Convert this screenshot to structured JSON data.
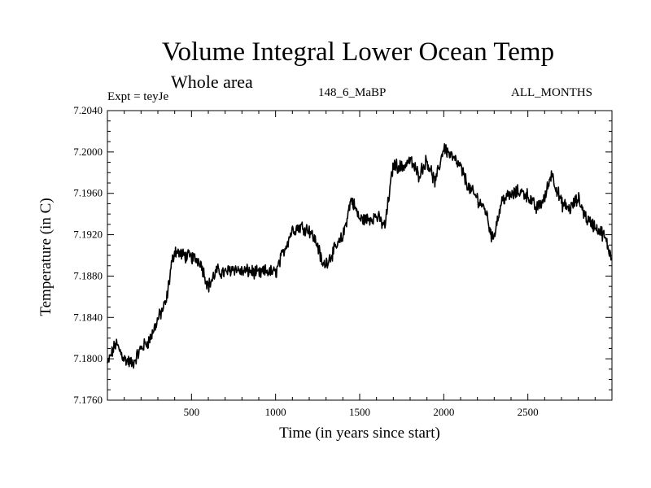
{
  "chart_data": {
    "type": "line",
    "title": "Volume Integral Lower Ocean Temp",
    "subtitle": "Whole area",
    "annotations": {
      "experiment": "Expt = teyJe",
      "run": "148_6_MaBP",
      "months": "ALL_MONTHS"
    },
    "xlabel": "Time (in years since start)",
    "ylabel": "Temperature (in C)",
    "xlim": [
      0,
      3000
    ],
    "ylim": [
      7.176,
      7.204
    ],
    "xticks": [
      500,
      1000,
      1500,
      2000,
      2500
    ],
    "xtick_labels": [
      "500",
      "1000",
      "1500",
      "2000",
      "2500"
    ],
    "yticks": [
      7.176,
      7.18,
      7.184,
      7.188,
      7.192,
      7.196,
      7.2,
      7.204
    ],
    "ytick_labels": [
      "7.1760",
      "7.1800",
      "7.1840",
      "7.1880",
      "7.1920",
      "7.1960",
      "7.2000",
      "7.2040"
    ],
    "series": [
      {
        "name": "Volume Integral Lower Ocean Temp",
        "color": "#000000",
        "x": [
          0,
          50,
          100,
          150,
          200,
          250,
          300,
          350,
          380,
          400,
          450,
          500,
          550,
          600,
          650,
          700,
          750,
          800,
          850,
          900,
          950,
          1000,
          1050,
          1100,
          1150,
          1200,
          1250,
          1280,
          1300,
          1350,
          1400,
          1450,
          1500,
          1550,
          1600,
          1650,
          1700,
          1750,
          1800,
          1850,
          1900,
          1950,
          2000,
          2050,
          2100,
          2150,
          2200,
          2250,
          2290,
          2350,
          2400,
          2450,
          2500,
          2550,
          2600,
          2640,
          2700,
          2750,
          2800,
          2850,
          2900,
          2950,
          3000
        ],
        "values": [
          7.1795,
          7.1815,
          7.18,
          7.1795,
          7.181,
          7.1818,
          7.1838,
          7.1855,
          7.189,
          7.1905,
          7.19,
          7.1898,
          7.1895,
          7.187,
          7.1885,
          7.1883,
          7.1888,
          7.1884,
          7.1885,
          7.1882,
          7.1885,
          7.1883,
          7.1905,
          7.1925,
          7.1928,
          7.1925,
          7.191,
          7.189,
          7.1893,
          7.1905,
          7.1918,
          7.1955,
          7.1935,
          7.1935,
          7.1938,
          7.1928,
          7.1988,
          7.1985,
          7.1992,
          7.1978,
          7.1992,
          7.197,
          7.2005,
          7.1995,
          7.1985,
          7.1965,
          7.1955,
          7.1943,
          7.1915,
          7.1955,
          7.1958,
          7.1962,
          7.1958,
          7.1945,
          7.1955,
          7.198,
          7.195,
          7.1945,
          7.1955,
          7.1935,
          7.1928,
          7.192,
          7.1897
        ]
      }
    ]
  }
}
